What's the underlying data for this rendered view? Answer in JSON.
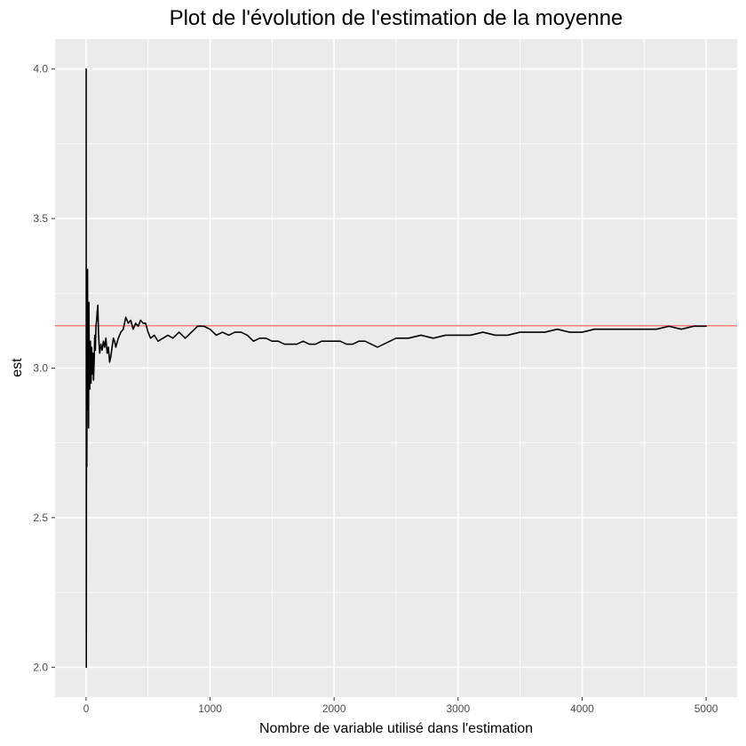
{
  "chart_data": {
    "type": "line",
    "title": "Plot de l'évolution de l'estimation de la moyenne",
    "xlabel": "Nombre de variable utilisé dans l'estimation",
    "ylabel": "est",
    "xlim": [
      -250,
      5250
    ],
    "ylim": [
      1.9,
      4.1
    ],
    "x_ticks": [
      0,
      1000,
      2000,
      3000,
      4000,
      5000
    ],
    "x_tick_labels": [
      "0",
      "1000",
      "2000",
      "3000",
      "4000",
      "5000"
    ],
    "x_minor_ticks": [
      500,
      1500,
      2500,
      3500,
      4500
    ],
    "y_ticks": [
      2.0,
      2.5,
      3.0,
      3.5,
      4.0
    ],
    "y_tick_labels": [
      "2.0",
      "2.5",
      "3.0",
      "3.5",
      "4.0"
    ],
    "y_minor_ticks": [
      2.25,
      2.75,
      3.25,
      3.75
    ],
    "grid": true,
    "panel_background": "#ebebeb",
    "grid_color": "#ffffff",
    "reference_line": {
      "y": 3.1416,
      "color": "#f8766d"
    },
    "series": [
      {
        "color": "#000000",
        "x": [
          1,
          2,
          3,
          4,
          5,
          6,
          7,
          8,
          9,
          10,
          12,
          14,
          16,
          18,
          20,
          23,
          26,
          30,
          35,
          40,
          45,
          50,
          55,
          60,
          65,
          70,
          75,
          80,
          85,
          90,
          95,
          100,
          105,
          110,
          120,
          130,
          140,
          150,
          160,
          170,
          180,
          190,
          200,
          210,
          220,
          230,
          240,
          260,
          280,
          300,
          320,
          340,
          360,
          380,
          400,
          420,
          440,
          460,
          480,
          500,
          520,
          550,
          580,
          620,
          660,
          700,
          750,
          800,
          850,
          900,
          950,
          1000,
          1050,
          1100,
          1150,
          1200,
          1250,
          1300,
          1350,
          1400,
          1450,
          1500,
          1550,
          1600,
          1650,
          1700,
          1750,
          1800,
          1850,
          1900,
          1950,
          2000,
          2050,
          2100,
          2150,
          2200,
          2250,
          2300,
          2350,
          2400,
          2450,
          2500,
          2600,
          2700,
          2800,
          2900,
          3000,
          3100,
          3200,
          3300,
          3400,
          3500,
          3600,
          3700,
          3800,
          3900,
          4000,
          4100,
          4200,
          4300,
          4400,
          4500,
          4600,
          4700,
          4800,
          4900,
          5000
        ],
        "y": [
          4.0,
          2.0,
          2.67,
          3.0,
          3.2,
          2.67,
          2.86,
          3.0,
          2.89,
          3.2,
          3.33,
          2.86,
          3.0,
          3.11,
          2.8,
          3.22,
          3.0,
          2.93,
          3.09,
          2.95,
          3.07,
          2.98,
          3.05,
          2.96,
          3.02,
          3.11,
          3.06,
          3.14,
          3.16,
          3.19,
          3.21,
          3.12,
          3.08,
          3.05,
          3.08,
          3.06,
          3.09,
          3.07,
          3.1,
          3.05,
          3.07,
          3.02,
          3.04,
          3.07,
          3.1,
          3.09,
          3.07,
          3.1,
          3.12,
          3.13,
          3.17,
          3.15,
          3.16,
          3.13,
          3.15,
          3.14,
          3.16,
          3.15,
          3.15,
          3.12,
          3.1,
          3.11,
          3.09,
          3.1,
          3.11,
          3.1,
          3.12,
          3.1,
          3.12,
          3.14,
          3.14,
          3.13,
          3.11,
          3.12,
          3.11,
          3.12,
          3.12,
          3.11,
          3.09,
          3.1,
          3.1,
          3.09,
          3.09,
          3.08,
          3.08,
          3.08,
          3.09,
          3.08,
          3.08,
          3.09,
          3.09,
          3.09,
          3.09,
          3.08,
          3.08,
          3.09,
          3.09,
          3.08,
          3.07,
          3.08,
          3.09,
          3.1,
          3.1,
          3.11,
          3.1,
          3.11,
          3.11,
          3.11,
          3.12,
          3.11,
          3.11,
          3.12,
          3.12,
          3.12,
          3.13,
          3.12,
          3.12,
          3.13,
          3.13,
          3.13,
          3.13,
          3.13,
          3.13,
          3.14,
          3.13,
          3.14,
          3.14
        ]
      }
    ]
  }
}
